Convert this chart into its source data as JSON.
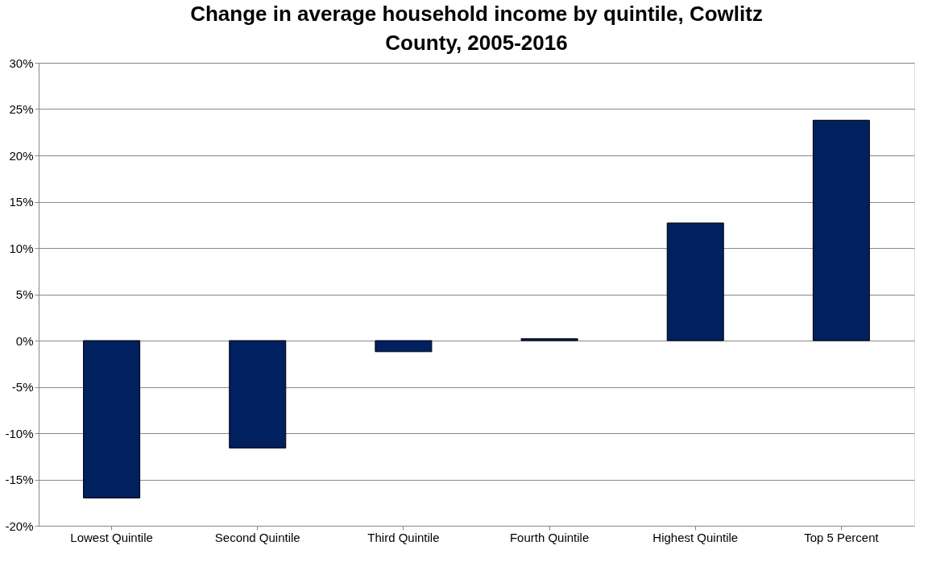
{
  "chart_data": {
    "type": "bar",
    "title": "Change in average household income by quintile, Cowlitz County, 2005-2016",
    "categories": [
      "Lowest Quintile",
      "Second Quintile",
      "Third Quintile",
      "Fourth Quintile",
      "Highest Quintile",
      "Top 5 Percent"
    ],
    "values": [
      -17.0,
      -11.6,
      -1.2,
      0.2,
      12.7,
      23.8
    ],
    "color": "#002060",
    "ylim": [
      -20,
      30
    ],
    "yticks": [
      {
        "value": -20,
        "label": "-20%"
      },
      {
        "value": -15,
        "label": "-15%"
      },
      {
        "value": -10,
        "label": "-10%"
      },
      {
        "value": -5,
        "label": "-5%"
      },
      {
        "value": 0,
        "label": "0%"
      },
      {
        "value": 5,
        "label": "5%"
      },
      {
        "value": 10,
        "label": "10%"
      },
      {
        "value": 15,
        "label": "15%"
      },
      {
        "value": 20,
        "label": "20%"
      },
      {
        "value": 25,
        "label": "25%"
      },
      {
        "value": 30,
        "label": "30%"
      }
    ],
    "grid": "y"
  }
}
